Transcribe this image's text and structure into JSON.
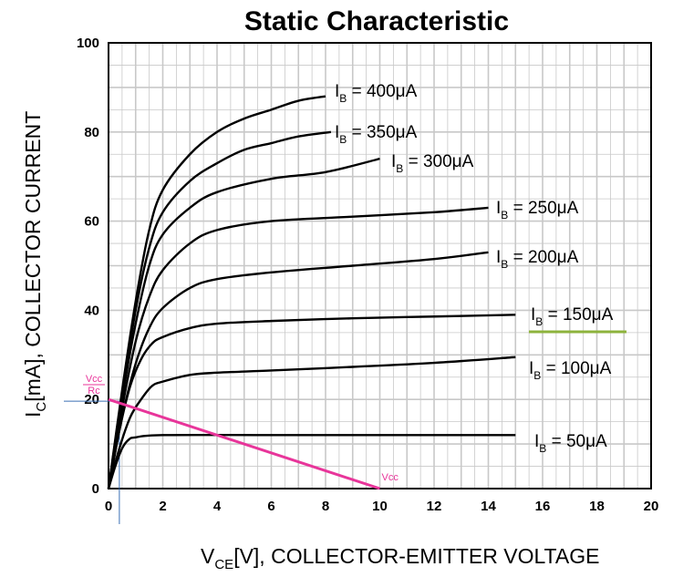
{
  "chart_data": {
    "type": "line",
    "title": "Static Characteristic",
    "xlabel": {
      "main": "V",
      "sub": "CE",
      "rest": "[V], COLLECTOR-EMITTER VOLTAGE"
    },
    "ylabel": {
      "main": "I",
      "sub": "C",
      "rest": "[mA], COLLECTOR CURRENT"
    },
    "xlim": [
      0,
      20
    ],
    "ylim": [
      0,
      100
    ],
    "x_ticks": [
      "0",
      "2",
      "4",
      "6",
      "8",
      "10",
      "12",
      "14",
      "16",
      "18",
      "20"
    ],
    "y_ticks": [
      "0",
      "20",
      "40",
      "60",
      "80",
      "100"
    ],
    "grid": true,
    "series": [
      {
        "name": "400μA",
        "points": [
          [
            0,
            0
          ],
          [
            0.5,
            22
          ],
          [
            1,
            42
          ],
          [
            1.5,
            58
          ],
          [
            2,
            67
          ],
          [
            3,
            75
          ],
          [
            4,
            80
          ],
          [
            5,
            83
          ],
          [
            6,
            85
          ],
          [
            7,
            87
          ],
          [
            8,
            88
          ]
        ],
        "label_pos": "end-right"
      },
      {
        "name": "350μA",
        "points": [
          [
            0,
            0
          ],
          [
            0.5,
            21
          ],
          [
            1,
            40
          ],
          [
            1.5,
            54
          ],
          [
            2,
            62
          ],
          [
            3,
            69
          ],
          [
            4,
            73
          ],
          [
            5,
            76
          ],
          [
            6,
            77.5
          ],
          [
            7,
            79
          ],
          [
            8.2,
            80
          ]
        ],
        "label_pos": "end-right"
      },
      {
        "name": "300μA",
        "points": [
          [
            0,
            0
          ],
          [
            0.5,
            20
          ],
          [
            1,
            37
          ],
          [
            1.5,
            50
          ],
          [
            2,
            57
          ],
          [
            3,
            63
          ],
          [
            4,
            66.5
          ],
          [
            6,
            69.5
          ],
          [
            8,
            71
          ],
          [
            10,
            74
          ]
        ],
        "label_pos": "end-below"
      },
      {
        "name": "250μA",
        "points": [
          [
            0,
            0
          ],
          [
            0.5,
            18
          ],
          [
            1,
            33
          ],
          [
            1.5,
            43
          ],
          [
            2,
            49
          ],
          [
            3,
            55
          ],
          [
            4,
            58
          ],
          [
            6,
            60
          ],
          [
            9,
            61
          ],
          [
            12,
            62
          ],
          [
            14,
            63
          ]
        ],
        "label_pos": "end-right"
      },
      {
        "name": "200μA",
        "points": [
          [
            0,
            0
          ],
          [
            0.5,
            16
          ],
          [
            1,
            28
          ],
          [
            1.5,
            36
          ],
          [
            2,
            40.5
          ],
          [
            3,
            45
          ],
          [
            4,
            47
          ],
          [
            6,
            48.5
          ],
          [
            9,
            50
          ],
          [
            12,
            51.5
          ],
          [
            14,
            53
          ]
        ],
        "label_pos": "end-right"
      },
      {
        "name": "150μA",
        "points": [
          [
            0,
            0
          ],
          [
            0.4,
            13
          ],
          [
            0.8,
            23
          ],
          [
            1.2,
            29
          ],
          [
            1.6,
            32.5
          ],
          [
            2,
            34
          ],
          [
            3,
            36
          ],
          [
            4,
            37
          ],
          [
            6,
            37.6
          ],
          [
            9,
            38.2
          ],
          [
            12,
            38.6
          ],
          [
            15,
            39
          ]
        ],
        "label_pos": "end-right"
      },
      {
        "name": "100μA",
        "points": [
          [
            0,
            0
          ],
          [
            0.4,
            9
          ],
          [
            0.8,
            16
          ],
          [
            1.2,
            20
          ],
          [
            1.6,
            23
          ],
          [
            2,
            24
          ],
          [
            3,
            25.5
          ],
          [
            4,
            26
          ],
          [
            6,
            26.5
          ],
          [
            9,
            27.3
          ],
          [
            12,
            28.2
          ],
          [
            15,
            29.5
          ]
        ],
        "label_pos": "end-right"
      },
      {
        "name": "50μA",
        "points": [
          [
            0,
            0
          ],
          [
            0.25,
            5
          ],
          [
            0.5,
            9
          ],
          [
            0.75,
            11
          ],
          [
            1,
            11.5
          ],
          [
            2,
            12
          ],
          [
            6,
            12
          ],
          [
            10,
            12
          ],
          [
            15,
            12
          ]
        ],
        "label_pos": "end-right"
      }
    ],
    "series_label_prefix": {
      "main": "I",
      "sub": "B",
      "eq": " = "
    },
    "load_line": {
      "points": [
        [
          0,
          20
        ],
        [
          10,
          0
        ]
      ],
      "color": "#e8359a",
      "label_end": "Vcc",
      "label_start_num": "Vcc",
      "label_start_den": "Rc"
    },
    "operating_point": {
      "x": 0.4,
      "y": 19.6,
      "guide_color": "#3a6fb5"
    },
    "highlight_150": {
      "color": "#8db33c"
    },
    "colors": {
      "curve": "#000000",
      "grid": "#c8c8c8",
      "frame": "#000000"
    }
  }
}
